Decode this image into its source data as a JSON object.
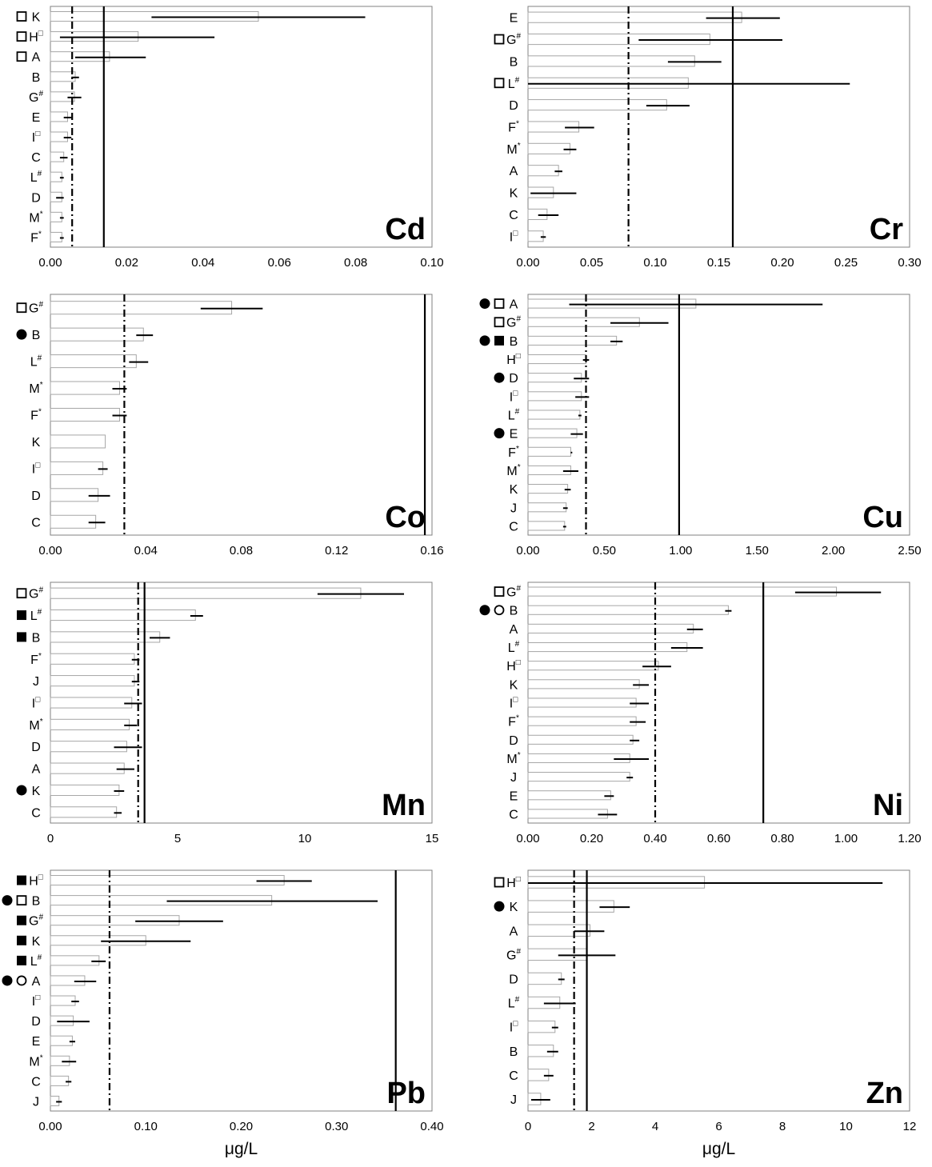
{
  "colors": {
    "axis": "#808080",
    "bar_fill": "#ffffff",
    "bar_stroke": "#a6a6a6",
    "line": "#000000"
  },
  "chart_data": [
    {
      "type": "bar",
      "title": "Cd",
      "xlabel": "",
      "xlim": [
        0,
        0.1
      ],
      "ticks": [
        "0.00",
        "0.02",
        "0.04",
        "0.06",
        "0.08",
        "0.10"
      ],
      "categories": [
        "K",
        "H",
        "A",
        "B",
        "G",
        "E",
        "I",
        "C",
        "L",
        "D",
        "M",
        "F"
      ],
      "superscripts": [
        "",
        "□",
        "",
        "",
        "#",
        "",
        "□",
        "",
        "#",
        "",
        "*",
        "*"
      ],
      "markers": [
        [
          "open-square"
        ],
        [
          "open-square"
        ],
        [
          "open-square"
        ],
        [],
        [],
        [],
        [],
        [],
        [],
        [],
        [],
        []
      ],
      "values": [
        0.0545,
        0.023,
        0.0155,
        0.0065,
        0.0063,
        0.0045,
        0.0045,
        0.0035,
        0.003,
        0.003,
        0.003,
        0.003
      ],
      "error_low": [
        0.0265,
        0.0025,
        0.0065,
        0.0055,
        0.0045,
        0.0035,
        0.0035,
        0.0025,
        0.0025,
        0.0015,
        0.0025,
        0.0025
      ],
      "error_high": [
        0.0825,
        0.043,
        0.025,
        0.0075,
        0.0081,
        0.0055,
        0.0055,
        0.0045,
        0.0035,
        0.0035,
        0.0035,
        0.0035
      ],
      "dashed_line": 0.0057,
      "solid_line": 0.014
    },
    {
      "type": "bar",
      "title": "Cr",
      "xlabel": "",
      "xlim": [
        0,
        0.3
      ],
      "ticks": [
        "0.00",
        "0.05",
        "0.10",
        "0.15",
        "0.20",
        "0.25",
        "0.30"
      ],
      "categories": [
        "E",
        "G",
        "B",
        "L",
        "D",
        "F",
        "M",
        "A",
        "K",
        "C",
        "I"
      ],
      "superscripts": [
        "",
        "#",
        "",
        "#",
        "",
        "*",
        "*",
        "",
        "",
        "",
        "□"
      ],
      "markers": [
        [],
        [
          "open-square"
        ],
        [],
        [
          "open-square"
        ],
        [],
        [],
        [],
        [],
        [],
        [],
        []
      ],
      "values": [
        0.168,
        0.143,
        0.131,
        0.126,
        0.109,
        0.04,
        0.033,
        0.024,
        0.02,
        0.015,
        0.012
      ],
      "error_low": [
        0.14,
        0.087,
        0.11,
        0.0,
        0.093,
        0.029,
        0.028,
        0.021,
        0.002,
        0.008,
        0.01
      ],
      "error_high": [
        0.198,
        0.2,
        0.152,
        0.253,
        0.127,
        0.052,
        0.038,
        0.027,
        0.038,
        0.024,
        0.014
      ],
      "dashed_line": 0.079,
      "solid_line": 0.161
    },
    {
      "type": "bar",
      "title": "Co",
      "xlabel": "",
      "xlim": [
        0,
        0.16
      ],
      "ticks": [
        "0.00",
        "0.04",
        "0.08",
        "0.12",
        "0.16"
      ],
      "categories": [
        "G",
        "B",
        "L",
        "M",
        "F",
        "K",
        "I",
        "D",
        "C"
      ],
      "superscripts": [
        "#",
        "",
        "#",
        "*",
        "*",
        "",
        "□",
        "",
        ""
      ],
      "markers": [
        [
          "open-square"
        ],
        [
          "filled-circle"
        ],
        [],
        [],
        [],
        [],
        [],
        [],
        []
      ],
      "values": [
        0.076,
        0.039,
        0.036,
        0.029,
        0.029,
        0.023,
        0.022,
        0.02,
        0.019
      ],
      "error_low": [
        0.063,
        0.036,
        0.033,
        0.026,
        0.026,
        0.023,
        0.02,
        0.016,
        0.016
      ],
      "error_high": [
        0.089,
        0.043,
        0.041,
        0.032,
        0.032,
        0.023,
        0.024,
        0.025,
        0.023
      ],
      "dashed_line": 0.031,
      "solid_line": 0.157
    },
    {
      "type": "bar",
      "title": "Cu",
      "xlabel": "",
      "xlim": [
        0,
        2.5
      ],
      "ticks": [
        "0.00",
        "0.50",
        "1.00",
        "1.50",
        "2.00",
        "2.50"
      ],
      "categories": [
        "A",
        "G",
        "B",
        "H",
        "D",
        "I",
        "L",
        "E",
        "F",
        "M",
        "K",
        "J",
        "C"
      ],
      "superscripts": [
        "",
        "#",
        "",
        "□",
        "",
        "□",
        "#",
        "",
        "*",
        "*",
        "",
        "",
        ""
      ],
      "markers": [
        [
          "filled-circle",
          "open-square"
        ],
        [
          "open-square"
        ],
        [
          "filled-circle",
          "filled-square"
        ],
        [],
        [
          "filled-circle"
        ],
        [],
        [],
        [
          "filled-circle"
        ],
        [],
        [],
        [],
        [],
        []
      ],
      "values": [
        1.1,
        0.73,
        0.58,
        0.38,
        0.35,
        0.35,
        0.34,
        0.32,
        0.28,
        0.28,
        0.26,
        0.25,
        0.24
      ],
      "error_low": [
        0.27,
        0.54,
        0.54,
        0.36,
        0.3,
        0.31,
        0.33,
        0.28,
        0.28,
        0.23,
        0.24,
        0.23,
        0.23
      ],
      "error_high": [
        1.93,
        0.92,
        0.62,
        0.4,
        0.4,
        0.4,
        0.35,
        0.36,
        0.29,
        0.33,
        0.28,
        0.26,
        0.25
      ],
      "dashed_line": 0.38,
      "solid_line": 0.99
    },
    {
      "type": "bar",
      "title": "Mn",
      "xlabel": "",
      "xlim": [
        0,
        15
      ],
      "ticks": [
        "0",
        "5",
        "10",
        "15"
      ],
      "categories": [
        "G",
        "L",
        "B",
        "F",
        "J",
        "I",
        "M",
        "D",
        "A",
        "K",
        "C"
      ],
      "superscripts": [
        "#",
        "#",
        "",
        "*",
        "",
        "□",
        "*",
        "",
        "",
        "",
        ""
      ],
      "markers": [
        [
          "open-square"
        ],
        [
          "filled-square"
        ],
        [
          "filled-square"
        ],
        [],
        [],
        [],
        [],
        [],
        [],
        [
          "filled-circle"
        ],
        []
      ],
      "values": [
        12.2,
        5.7,
        4.3,
        3.3,
        3.3,
        3.2,
        3.1,
        3.0,
        2.9,
        2.7,
        2.6
      ],
      "error_low": [
        10.5,
        5.5,
        3.9,
        3.2,
        3.2,
        2.9,
        2.9,
        2.5,
        2.6,
        2.5,
        2.5
      ],
      "error_high": [
        13.9,
        6.0,
        4.7,
        3.5,
        3.5,
        3.6,
        3.4,
        3.6,
        3.3,
        2.9,
        2.8
      ],
      "dashed_line": 3.45,
      "solid_line": 3.7
    },
    {
      "type": "bar",
      "title": "Ni",
      "xlabel": "",
      "xlim": [
        0,
        1.2
      ],
      "ticks": [
        "0.00",
        "0.20",
        "0.40",
        "0.60",
        "0.80",
        "1.00",
        "1.20"
      ],
      "categories": [
        "G",
        "B",
        "A",
        "L",
        "H",
        "K",
        "I",
        "F",
        "D",
        "M",
        "J",
        "E",
        "C"
      ],
      "superscripts": [
        "#",
        "",
        "",
        "#",
        "□",
        "",
        "□",
        "*",
        "",
        "*",
        "",
        "",
        ""
      ],
      "markers": [
        [
          "open-square"
        ],
        [
          "filled-circle",
          "open-circle"
        ],
        [],
        [],
        [],
        [],
        [],
        [],
        [],
        [],
        [],
        [],
        []
      ],
      "values": [
        0.97,
        0.63,
        0.52,
        0.5,
        0.41,
        0.35,
        0.34,
        0.34,
        0.33,
        0.32,
        0.32,
        0.26,
        0.25
      ],
      "error_low": [
        0.84,
        0.62,
        0.5,
        0.45,
        0.36,
        0.33,
        0.32,
        0.32,
        0.32,
        0.27,
        0.31,
        0.24,
        0.22
      ],
      "error_high": [
        1.11,
        0.64,
        0.55,
        0.55,
        0.45,
        0.38,
        0.38,
        0.37,
        0.35,
        0.38,
        0.33,
        0.27,
        0.28
      ],
      "dashed_line": 0.4,
      "solid_line": 0.74
    },
    {
      "type": "bar",
      "title": "Pb",
      "xlabel": "μg/L",
      "xlim": [
        0,
        0.4
      ],
      "ticks": [
        "0.00",
        "0.10",
        "0.20",
        "0.30",
        "0.40"
      ],
      "categories": [
        "H",
        "B",
        "G",
        "K",
        "L",
        "A",
        "I",
        "D",
        "E",
        "M",
        "C",
        "J"
      ],
      "superscripts": [
        "□",
        "",
        "#",
        "",
        "#",
        "",
        "□",
        "",
        "",
        "*",
        "",
        ""
      ],
      "markers": [
        [
          "filled-square"
        ],
        [
          "filled-circle",
          "open-square"
        ],
        [
          "filled-square"
        ],
        [
          "filled-square"
        ],
        [
          "filled-square"
        ],
        [
          "filled-circle",
          "open-circle"
        ],
        [],
        [],
        [],
        [],
        [],
        []
      ],
      "values": [
        0.245,
        0.232,
        0.135,
        0.1,
        0.051,
        0.036,
        0.026,
        0.024,
        0.023,
        0.02,
        0.019,
        0.009
      ],
      "error_low": [
        0.216,
        0.122,
        0.089,
        0.053,
        0.043,
        0.025,
        0.022,
        0.007,
        0.02,
        0.012,
        0.016,
        0.006
      ],
      "error_high": [
        0.274,
        0.343,
        0.181,
        0.147,
        0.058,
        0.048,
        0.03,
        0.041,
        0.026,
        0.027,
        0.022,
        0.012
      ],
      "dashed_line": 0.062,
      "solid_line": 0.362
    },
    {
      "type": "bar",
      "title": "Zn",
      "xlabel": "μg/L",
      "xlim": [
        0,
        12
      ],
      "ticks": [
        "0",
        "2",
        "4",
        "6",
        "8",
        "10",
        "12"
      ],
      "categories": [
        "H",
        "K",
        "A",
        "G",
        "D",
        "L",
        "I",
        "B",
        "C",
        "J"
      ],
      "superscripts": [
        "□",
        "",
        "",
        "#",
        "",
        "#",
        "□",
        "",
        "",
        ""
      ],
      "markers": [
        [
          "open-square"
        ],
        [
          "filled-circle"
        ],
        [],
        [],
        [],
        [],
        [],
        [],
        [],
        []
      ],
      "values": [
        5.55,
        2.7,
        1.95,
        1.85,
        1.05,
        1.0,
        0.85,
        0.8,
        0.65,
        0.4
      ],
      "error_low": [
        0.0,
        2.25,
        1.45,
        0.95,
        0.95,
        0.5,
        0.75,
        0.6,
        0.5,
        0.1
      ],
      "error_high": [
        11.15,
        3.2,
        2.4,
        2.75,
        1.15,
        1.5,
        0.95,
        0.95,
        0.8,
        0.7
      ],
      "dashed_line": 1.45,
      "solid_line": 1.85
    }
  ]
}
